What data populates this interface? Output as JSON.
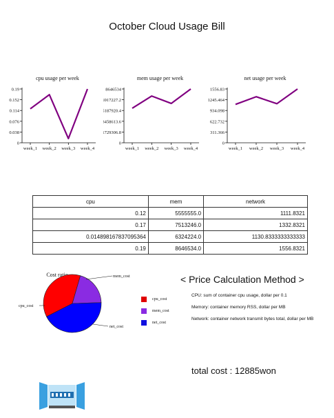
{
  "title": "October Cloud Usage Bill",
  "chart_data": [
    {
      "type": "line",
      "title": "cpu usage per week",
      "categories": [
        "week_1",
        "week_2",
        "week_3",
        "week_4"
      ],
      "values": [
        0.12,
        0.17,
        0.014898167837095364,
        0.19
      ],
      "ylim": [
        0,
        0.19
      ],
      "yticks": [
        0,
        0.038,
        0.076,
        0.114,
        0.152,
        0.19
      ],
      "ytick_labels": [
        "0",
        "0.038",
        "0.076",
        "0.114",
        "0.152",
        "0.19"
      ],
      "color": "#800080"
    },
    {
      "type": "line",
      "title": "mem usage per week",
      "categories": [
        "week_1",
        "week_2",
        "week_3",
        "week_4"
      ],
      "values": [
        5555555.0,
        7513246.0,
        6324224.0,
        8646534.0
      ],
      "ylim": [
        0,
        8646534
      ],
      "yticks": [
        0,
        1729306.8,
        3458613.6,
        5187920.4,
        6917227.2,
        8646534
      ],
      "ytick_labels": [
        "0",
        "1729306.8",
        "3458613.6",
        "5187920.4",
        "6917227.2",
        "8646534"
      ],
      "color": "#800080"
    },
    {
      "type": "line",
      "title": "net usage per week",
      "categories": [
        "week_1",
        "week_2",
        "week_3",
        "week_4"
      ],
      "values": [
        1111.8321,
        1332.8321,
        1130.8333333333333,
        1556.8321
      ],
      "ylim": [
        0,
        1556.83
      ],
      "yticks": [
        0,
        311.366,
        622.732,
        934.098,
        1245.464,
        1556.83
      ],
      "ytick_labels": [
        "0",
        "311.366",
        "622.732",
        "934.098",
        "1245.464",
        "1556.83"
      ],
      "color": "#800080"
    },
    {
      "type": "pie",
      "title": "Cost ratio",
      "labels": [
        "cpu_cost",
        "mem_cost",
        "net_cost"
      ],
      "values": [
        37,
        20,
        43
      ],
      "colors": [
        "#ff0000",
        "#8a2be2",
        "#0000ff"
      ]
    }
  ],
  "table": {
    "headers": [
      "cpu",
      "mem",
      "network"
    ],
    "rows": [
      [
        "0.12",
        "5555555.0",
        "1111.8321"
      ],
      [
        "0.17",
        "7513246.0",
        "1332.8321"
      ],
      [
        "0.014898167837095364",
        "6324224.0",
        "1130.8333333333333"
      ],
      [
        "0.19",
        "8646534.0",
        "1556.8321"
      ]
    ]
  },
  "legend": [
    {
      "label": "cpu_cost",
      "color": "#e00000"
    },
    {
      "label": "mem_cost",
      "color": "#8a2be2"
    },
    {
      "label": "net_cost",
      "color": "#1010e0"
    }
  ],
  "method": {
    "title": "< Price Calculation Method >",
    "lines": [
      "CPU: sum of container cpu usage, dollar per 0.1",
      "Memory: container memory RSS, dollar per MB",
      "Network: container network transmit bytes total, dollar per MB"
    ]
  },
  "total_cost": "total cost :  12885won"
}
